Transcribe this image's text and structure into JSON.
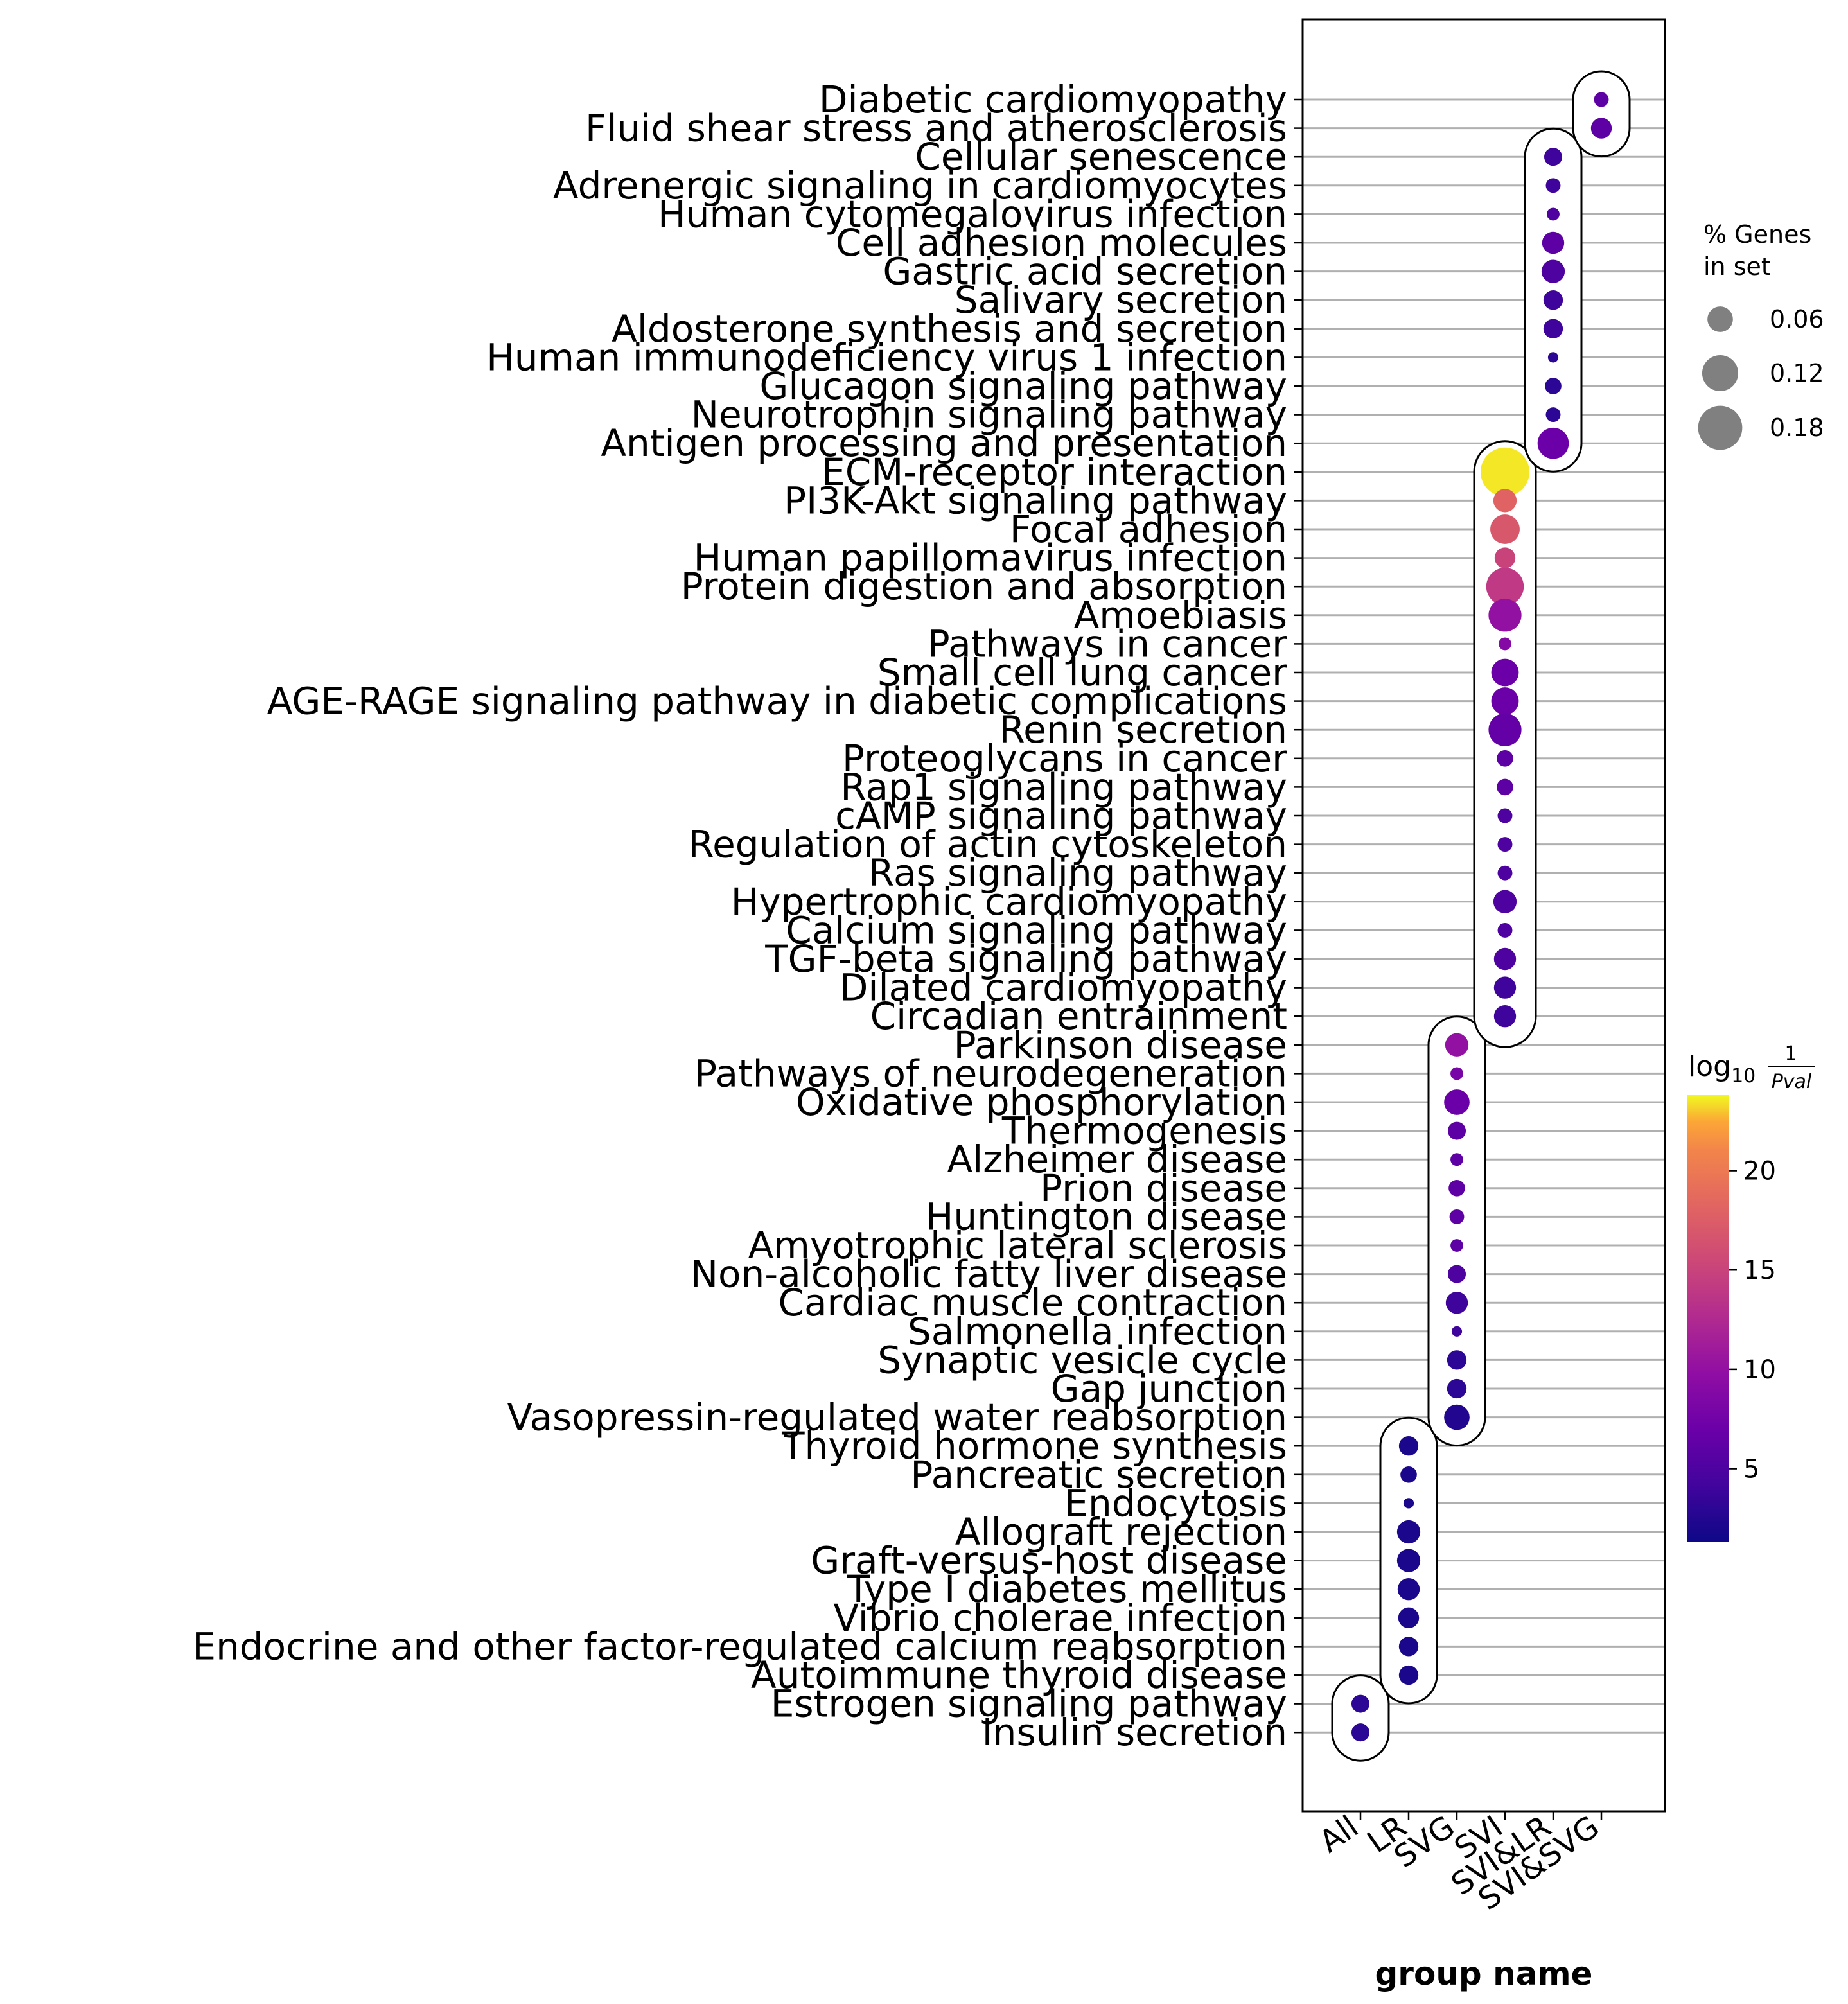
{
  "chart_data": {
    "type": "scatter",
    "xlabel": "group name",
    "ylabel": "",
    "groups": [
      "All",
      "LR",
      "SVG",
      "SVI",
      "SVI&LR",
      "SVI&SVG"
    ],
    "pathways": [
      "Diabetic cardiomyopathy",
      "Fluid shear stress and atherosclerosis",
      "Cellular senescence",
      "Adrenergic signaling in cardiomyocytes",
      "Human cytomegalovirus infection",
      "Cell adhesion molecules",
      "Gastric acid secretion",
      "Salivary secretion",
      "Aldosterone synthesis and secretion",
      "Human immunodeficiency virus 1 infection",
      "Glucagon signaling pathway",
      "Neurotrophin signaling pathway",
      "Antigen processing and presentation",
      "ECM-receptor interaction",
      "PI3K-Akt signaling pathway",
      "Focal adhesion",
      "Human papillomavirus infection",
      "Protein digestion and absorption",
      "Amoebiasis",
      "Pathways in cancer",
      "Small cell lung cancer",
      "AGE-RAGE signaling pathway in diabetic complications",
      "Renin secretion",
      "Proteoglycans in cancer",
      "Rap1 signaling pathway",
      "cAMP signaling pathway",
      "Regulation of actin cytoskeleton",
      "Ras signaling pathway",
      "Hypertrophic cardiomyopathy",
      "Calcium signaling pathway",
      "TGF-beta signaling pathway",
      "Dilated cardiomyopathy",
      "Circadian entrainment",
      "Parkinson disease",
      "Pathways of neurodegeneration",
      "Oxidative phosphorylation",
      "Thermogenesis",
      "Alzheimer disease",
      "Prion disease",
      "Huntington disease",
      "Amyotrophic lateral sclerosis",
      "Non-alcoholic fatty liver disease",
      "Cardiac muscle contraction",
      "Salmonella infection",
      "Synaptic vesicle cycle",
      "Gap junction",
      "Vasopressin-regulated water reabsorption",
      "Thyroid hormone synthesis",
      "Pancreatic secretion",
      "Endocytosis",
      "Allograft rejection",
      "Graft-versus-host disease",
      "Type I diabetes mellitus",
      "Vibrio cholerae infection",
      "Endocrine and other factor-regulated calcium reabsorption",
      "Autoimmune thyroid disease",
      "Estrogen signaling pathway",
      "Insulin secretion"
    ],
    "points": [
      {
        "pathway": "Diabetic cardiomyopathy",
        "group": "SVI&SVG",
        "pct_genes": 0.02,
        "log10_inv_pval": 6
      },
      {
        "pathway": "Fluid shear stress and atherosclerosis",
        "group": "SVI&SVG",
        "pct_genes": 0.04,
        "log10_inv_pval": 6
      },
      {
        "pathway": "Cellular senescence",
        "group": "SVI&LR",
        "pct_genes": 0.03,
        "log10_inv_pval": 4
      },
      {
        "pathway": "Adrenergic signaling in cardiomyocytes",
        "group": "SVI&LR",
        "pct_genes": 0.02,
        "log10_inv_pval": 4
      },
      {
        "pathway": "Human cytomegalovirus infection",
        "group": "SVI&LR",
        "pct_genes": 0.015,
        "log10_inv_pval": 5
      },
      {
        "pathway": "Cell adhesion molecules",
        "group": "SVI&LR",
        "pct_genes": 0.045,
        "log10_inv_pval": 6
      },
      {
        "pathway": "Gastric acid secretion",
        "group": "SVI&LR",
        "pct_genes": 0.05,
        "log10_inv_pval": 5
      },
      {
        "pathway": "Salivary secretion",
        "group": "SVI&LR",
        "pct_genes": 0.035,
        "log10_inv_pval": 4
      },
      {
        "pathway": "Aldosterone synthesis and secretion",
        "group": "SVI&LR",
        "pct_genes": 0.035,
        "log10_inv_pval": 4
      },
      {
        "pathway": "Human immunodeficiency virus 1 infection",
        "group": "SVI&LR",
        "pct_genes": 0.01,
        "log10_inv_pval": 3
      },
      {
        "pathway": "Glucagon signaling pathway",
        "group": "SVI&LR",
        "pct_genes": 0.025,
        "log10_inv_pval": 3
      },
      {
        "pathway": "Neurotrophin signaling pathway",
        "group": "SVI&LR",
        "pct_genes": 0.02,
        "log10_inv_pval": 3
      },
      {
        "pathway": "Antigen processing and presentation",
        "group": "SVI&LR",
        "pct_genes": 0.09,
        "log10_inv_pval": 7
      },
      {
        "pathway": "ECM-receptor interaction",
        "group": "SVI",
        "pct_genes": 0.22,
        "log10_inv_pval": 23.5
      },
      {
        "pathway": "PI3K-Akt signaling pathway",
        "group": "SVI",
        "pct_genes": 0.05,
        "log10_inv_pval": 18
      },
      {
        "pathway": "Focal adhesion",
        "group": "SVI",
        "pct_genes": 0.08,
        "log10_inv_pval": 17
      },
      {
        "pathway": "Human papillomavirus infection",
        "group": "SVI",
        "pct_genes": 0.04,
        "log10_inv_pval": 15
      },
      {
        "pathway": "Protein digestion and absorption",
        "group": "SVI",
        "pct_genes": 0.13,
        "log10_inv_pval": 14
      },
      {
        "pathway": "Amoebiasis",
        "group": "SVI",
        "pct_genes": 0.1,
        "log10_inv_pval": 10
      },
      {
        "pathway": "Pathways in cancer",
        "group": "SVI",
        "pct_genes": 0.015,
        "log10_inv_pval": 9
      },
      {
        "pathway": "Small cell lung cancer",
        "group": "SVI",
        "pct_genes": 0.07,
        "log10_inv_pval": 7
      },
      {
        "pathway": "AGE-RAGE signaling pathway in diabetic complications",
        "group": "SVI",
        "pct_genes": 0.07,
        "log10_inv_pval": 7
      },
      {
        "pathway": "Renin secretion",
        "group": "SVI",
        "pct_genes": 0.1,
        "log10_inv_pval": 6.5
      },
      {
        "pathway": "Proteoglycans in cancer",
        "group": "SVI",
        "pct_genes": 0.025,
        "log10_inv_pval": 6
      },
      {
        "pathway": "Rap1 signaling pathway",
        "group": "SVI",
        "pct_genes": 0.025,
        "log10_inv_pval": 6
      },
      {
        "pathway": "cAMP signaling pathway",
        "group": "SVI",
        "pct_genes": 0.02,
        "log10_inv_pval": 5
      },
      {
        "pathway": "Regulation of actin cytoskeleton",
        "group": "SVI",
        "pct_genes": 0.02,
        "log10_inv_pval": 5
      },
      {
        "pathway": "Ras signaling pathway",
        "group": "SVI",
        "pct_genes": 0.02,
        "log10_inv_pval": 5
      },
      {
        "pathway": "Hypertrophic cardiomyopathy",
        "group": "SVI",
        "pct_genes": 0.05,
        "log10_inv_pval": 5
      },
      {
        "pathway": "Calcium signaling pathway",
        "group": "SVI",
        "pct_genes": 0.02,
        "log10_inv_pval": 5
      },
      {
        "pathway": "TGF-beta signaling pathway",
        "group": "SVI",
        "pct_genes": 0.045,
        "log10_inv_pval": 5
      },
      {
        "pathway": "Dilated cardiomyopathy",
        "group": "SVI",
        "pct_genes": 0.045,
        "log10_inv_pval": 4
      },
      {
        "pathway": "Circadian entrainment",
        "group": "SVI",
        "pct_genes": 0.045,
        "log10_inv_pval": 4
      },
      {
        "pathway": "Parkinson disease",
        "group": "SVG",
        "pct_genes": 0.05,
        "log10_inv_pval": 10
      },
      {
        "pathway": "Pathways of neurodegeneration",
        "group": "SVG",
        "pct_genes": 0.015,
        "log10_inv_pval": 8
      },
      {
        "pathway": "Oxidative phosphorylation",
        "group": "SVG",
        "pct_genes": 0.06,
        "log10_inv_pval": 7
      },
      {
        "pathway": "Thermogenesis",
        "group": "SVG",
        "pct_genes": 0.03,
        "log10_inv_pval": 6
      },
      {
        "pathway": "Alzheimer disease",
        "group": "SVG",
        "pct_genes": 0.015,
        "log10_inv_pval": 6
      },
      {
        "pathway": "Prion disease",
        "group": "SVG",
        "pct_genes": 0.025,
        "log10_inv_pval": 6
      },
      {
        "pathway": "Huntington disease",
        "group": "SVG",
        "pct_genes": 0.02,
        "log10_inv_pval": 6
      },
      {
        "pathway": "Amyotrophic lateral sclerosis",
        "group": "SVG",
        "pct_genes": 0.015,
        "log10_inv_pval": 6
      },
      {
        "pathway": "Non-alcoholic fatty liver disease",
        "group": "SVG",
        "pct_genes": 0.03,
        "log10_inv_pval": 5
      },
      {
        "pathway": "Cardiac muscle contraction",
        "group": "SVG",
        "pct_genes": 0.045,
        "log10_inv_pval": 4
      },
      {
        "pathway": "Salmonella infection",
        "group": "SVG",
        "pct_genes": 0.01,
        "log10_inv_pval": 4
      },
      {
        "pathway": "Synaptic vesicle cycle",
        "group": "SVG",
        "pct_genes": 0.035,
        "log10_inv_pval": 3
      },
      {
        "pathway": "Gap junction",
        "group": "SVG",
        "pct_genes": 0.035,
        "log10_inv_pval": 3
      },
      {
        "pathway": "Vasopressin-regulated water reabsorption",
        "group": "SVG",
        "pct_genes": 0.06,
        "log10_inv_pval": 2.5
      },
      {
        "pathway": "Thyroid hormone synthesis",
        "group": "LR",
        "pct_genes": 0.035,
        "log10_inv_pval": 2
      },
      {
        "pathway": "Pancreatic secretion",
        "group": "LR",
        "pct_genes": 0.025,
        "log10_inv_pval": 2
      },
      {
        "pathway": "Endocytosis",
        "group": "LR",
        "pct_genes": 0.01,
        "log10_inv_pval": 2
      },
      {
        "pathway": "Allograft rejection",
        "group": "LR",
        "pct_genes": 0.05,
        "log10_inv_pval": 2
      },
      {
        "pathway": "Graft-versus-host disease",
        "group": "LR",
        "pct_genes": 0.05,
        "log10_inv_pval": 2
      },
      {
        "pathway": "Type I diabetes mellitus",
        "group": "LR",
        "pct_genes": 0.045,
        "log10_inv_pval": 2
      },
      {
        "pathway": "Vibrio cholerae infection",
        "group": "LR",
        "pct_genes": 0.04,
        "log10_inv_pval": 2
      },
      {
        "pathway": "Endocrine and other factor-regulated calcium reabsorption",
        "group": "LR",
        "pct_genes": 0.035,
        "log10_inv_pval": 2
      },
      {
        "pathway": "Autoimmune thyroid disease",
        "group": "LR",
        "pct_genes": 0.035,
        "log10_inv_pval": 2
      },
      {
        "pathway": "Estrogen signaling pathway",
        "group": "All",
        "pct_genes": 0.03,
        "log10_inv_pval": 3
      },
      {
        "pathway": "Insulin secretion",
        "group": "All",
        "pct_genes": 0.03,
        "log10_inv_pval": 3
      }
    ],
    "size_legend": {
      "title_line1": "% Genes",
      "title_line2": "in set",
      "values": [
        0.06,
        0.12,
        0.18
      ],
      "labels": [
        "0.06",
        "0.12",
        "0.18"
      ]
    },
    "colorbar": {
      "title_main": "log",
      "title_sub": "10",
      "title_frac_num": "1",
      "title_frac_den": "Pval",
      "colormap": "plasma",
      "range": [
        1.3,
        23.8
      ],
      "ticks": [
        5,
        10,
        15,
        20
      ],
      "tick_labels": [
        "5",
        "10",
        "15",
        "20"
      ]
    },
    "grid": true,
    "outlines": "rounded enclosure around each group's points"
  }
}
